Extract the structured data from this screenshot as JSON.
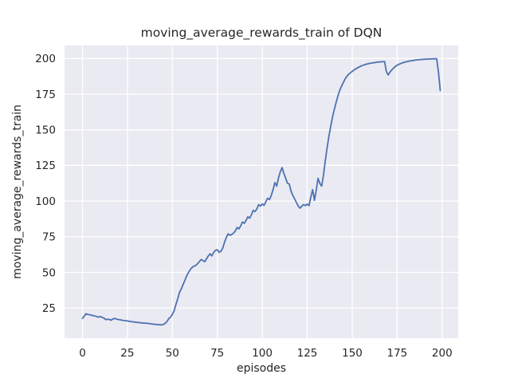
{
  "chart_data": {
    "type": "line",
    "title": "moving_average_rewards_train of DQN",
    "xlabel": "episodes",
    "ylabel": "moving_average_rewards_train",
    "x_ticks": [
      0,
      25,
      50,
      75,
      100,
      125,
      150,
      175,
      200
    ],
    "y_ticks": [
      25,
      50,
      75,
      100,
      125,
      150,
      175,
      200
    ],
    "xlim": [
      -9.95,
      208.95
    ],
    "ylim": [
      3.8,
      209.2
    ],
    "grid": true,
    "legend": false,
    "style": {
      "figure_background": "#ffffff",
      "axes_background": "#eaeaf2",
      "grid_color": "#ffffff",
      "line_color": "#4c72b0",
      "text_color": "#262626"
    },
    "series": [
      {
        "name": "moving_average_rewards_train",
        "x_start": 0,
        "x_step": 1,
        "y": [
          17.7,
          19.3,
          20.9,
          20.4,
          20.2,
          20.0,
          19.5,
          19.3,
          18.9,
          18.6,
          19.0,
          18.3,
          17.9,
          16.8,
          17.1,
          16.9,
          16.4,
          17.3,
          17.7,
          17.1,
          16.9,
          16.7,
          16.4,
          16.1,
          16.0,
          15.9,
          15.6,
          15.4,
          15.3,
          15.1,
          14.9,
          14.8,
          14.6,
          14.5,
          14.4,
          14.3,
          14.2,
          14.1,
          13.9,
          13.7,
          13.5,
          13.4,
          13.3,
          13.2,
          13.1,
          13.4,
          14.2,
          15.5,
          17.5,
          18.6,
          20.5,
          23.0,
          27.5,
          31.5,
          36.0,
          38.5,
          41.5,
          44.5,
          47.5,
          50.0,
          52.0,
          53.5,
          54.3,
          54.8,
          56.0,
          57.4,
          59.0,
          58.3,
          57.4,
          59.5,
          61.5,
          63.0,
          61.5,
          64.0,
          65.5,
          65.8,
          64.0,
          64.8,
          67.0,
          71.0,
          74.5,
          77.0,
          76.0,
          76.5,
          77.5,
          79.0,
          81.5,
          80.5,
          82.5,
          85.3,
          84.4,
          86.5,
          89.0,
          88.0,
          90.5,
          93.5,
          92.7,
          94.5,
          97.5,
          96.5,
          98.0,
          97.0,
          99.5,
          102.0,
          101.0,
          104.0,
          108.0,
          113.0,
          110.5,
          116.0,
          120.5,
          123.5,
          119.5,
          116.0,
          112.5,
          112.0,
          107.0,
          104.0,
          101.5,
          99.0,
          96.5,
          95.0,
          96.5,
          97.5,
          96.8,
          97.8,
          96.8,
          103.0,
          108.0,
          100.5,
          107.5,
          116.0,
          112.5,
          110.5,
          118.0,
          128.0,
          137.0,
          145.0,
          152.0,
          158.5,
          164.0,
          169.0,
          173.5,
          177.5,
          180.5,
          183.0,
          185.5,
          187.5,
          189.0,
          190.0,
          191.0,
          192.0,
          192.8,
          193.5,
          194.2,
          194.8,
          195.3,
          195.7,
          196.1,
          196.4,
          196.7,
          196.9,
          197.1,
          197.3,
          197.5,
          197.6,
          197.7,
          197.8,
          197.9,
          191.0,
          188.5,
          190.5,
          192.0,
          193.3,
          194.4,
          195.3,
          196.0,
          196.5,
          197.0,
          197.4,
          197.7,
          198.0,
          198.3,
          198.5,
          198.7,
          198.9,
          199.1,
          199.2,
          199.3,
          199.4,
          199.5,
          199.6,
          199.7,
          199.7,
          199.8,
          199.8,
          199.9,
          199.9,
          190.0,
          177.5
        ]
      }
    ]
  }
}
